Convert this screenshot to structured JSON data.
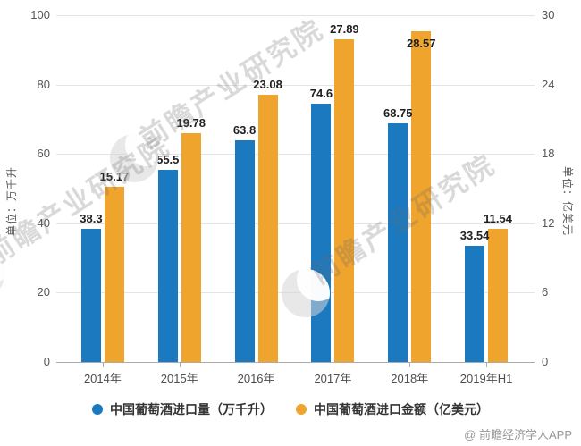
{
  "chart_data": {
    "type": "bar",
    "title": "",
    "categories": [
      "2014年",
      "2015年",
      "2016年",
      "2017年",
      "2018年",
      "2019年H1"
    ],
    "series": [
      {
        "name": "中国葡萄酒进口量（万千升）",
        "axis": "left",
        "color": "#1B79C0",
        "values": [
          38.3,
          55.5,
          63.8,
          74.6,
          68.75,
          33.54
        ]
      },
      {
        "name": "中国葡萄酒进口金额（亿美元）",
        "axis": "right",
        "color": "#EEA42D",
        "values": [
          15.17,
          19.78,
          23.08,
          27.89,
          28.57,
          11.54
        ]
      }
    ],
    "left_axis": {
      "title": "单位：万千升",
      "min": 0,
      "max": 100,
      "ticks": [
        0,
        20,
        40,
        60,
        80,
        100
      ]
    },
    "right_axis": {
      "title": "单位：亿美元",
      "min": 0,
      "max": 30,
      "ticks": [
        0,
        6,
        12,
        18,
        24,
        30
      ]
    },
    "grid": true,
    "legend_position": "bottom",
    "value_labels": true
  },
  "watermark": {
    "brand_text": "前瞻产业研究院"
  },
  "attribution": "@ 前瞻经济学人APP",
  "colors": {
    "volume_bar": "#1B79C0",
    "amount_bar": "#EEA42D",
    "gridline": "#E4E4E4",
    "axis_line": "#ABABAB",
    "tick_text": "#565656",
    "data_label": "#1F1F1F"
  }
}
